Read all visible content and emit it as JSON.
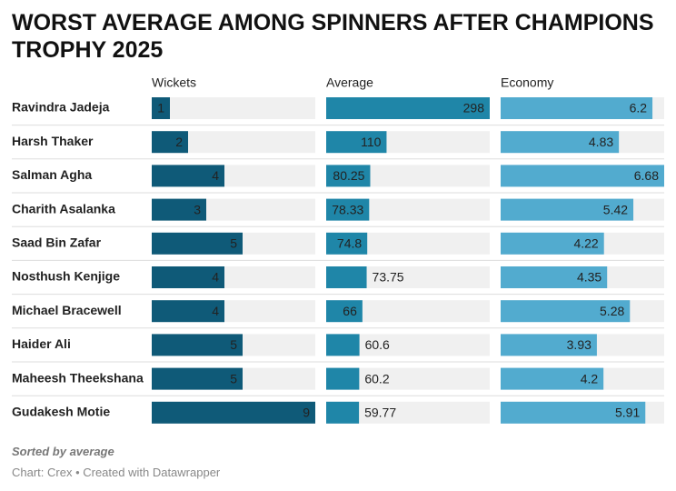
{
  "chart_data": {
    "type": "bar",
    "title": "WORST AVERAGE AMONG SPINNERS AFTER CHAMPIONS TROPHY 2025",
    "categories": [
      "Ravindra Jadeja",
      "Harsh Thaker",
      "Salman Agha",
      "Charith Asalanka",
      "Saad Bin Zafar",
      "Nosthush Kenjige",
      "Michael Bracewell",
      "Haider Ali",
      "Maheesh Theekshana",
      "Gudakesh Motie"
    ],
    "series": [
      {
        "name": "Wickets",
        "color": "#0f5a78",
        "values": [
          1,
          2,
          4,
          3,
          5,
          4,
          4,
          5,
          5,
          9
        ]
      },
      {
        "name": "Average",
        "color": "#1f86a8",
        "values": [
          298,
          110,
          80.25,
          78.33,
          74.8,
          73.75,
          66,
          60.6,
          60.2,
          59.77
        ]
      },
      {
        "name": "Economy",
        "color": "#52abcf",
        "values": [
          6.2,
          4.83,
          6.68,
          5.42,
          4.22,
          4.35,
          5.28,
          3.93,
          4.2,
          5.91
        ]
      }
    ],
    "notes": "Sorted by average",
    "footer": "Chart: Crex • Created with Datawrapper"
  }
}
